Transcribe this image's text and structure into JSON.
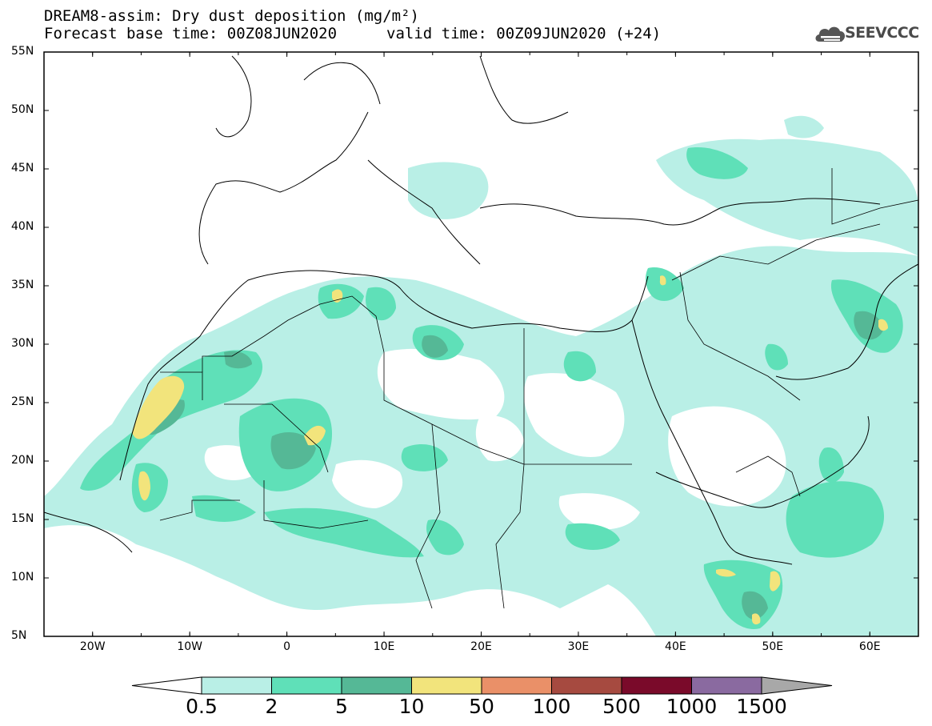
{
  "header": {
    "title": "DREAM8-assim: Dry dust deposition (mg/m²)",
    "base_time": "Forecast base time: 00Z08JUN2020",
    "valid_time": "valid time: 00Z09JUN2020 (+24)"
  },
  "logo": {
    "text": "SEEVCCC",
    "icon": "cloud-logo-icon"
  },
  "map": {
    "lon_range": [
      -25,
      65
    ],
    "lat_range": [
      5,
      55
    ],
    "lat_labels": [
      "55N",
      "50N",
      "45N",
      "40N",
      "35N",
      "30N",
      "25N",
      "20N",
      "15N",
      "10N",
      "5N"
    ],
    "lon_labels": [
      "20W",
      "10W",
      "0",
      "10E",
      "20E",
      "30E",
      "40E",
      "50E",
      "60E"
    ],
    "colors": {
      "frame": "#000000",
      "borders": "#000000"
    }
  },
  "colorbar": {
    "labels": [
      "0.5",
      "2",
      "5",
      "10",
      "50",
      "100",
      "500",
      "1000",
      "1500"
    ],
    "colors": [
      "#ffffff",
      "#b9efe6",
      "#5fe0b8",
      "#55b896",
      "#f2e47c",
      "#ea9068",
      "#a64a40",
      "#7a0a2a",
      "#8a6aa0",
      "#a8a8a8"
    ]
  }
}
